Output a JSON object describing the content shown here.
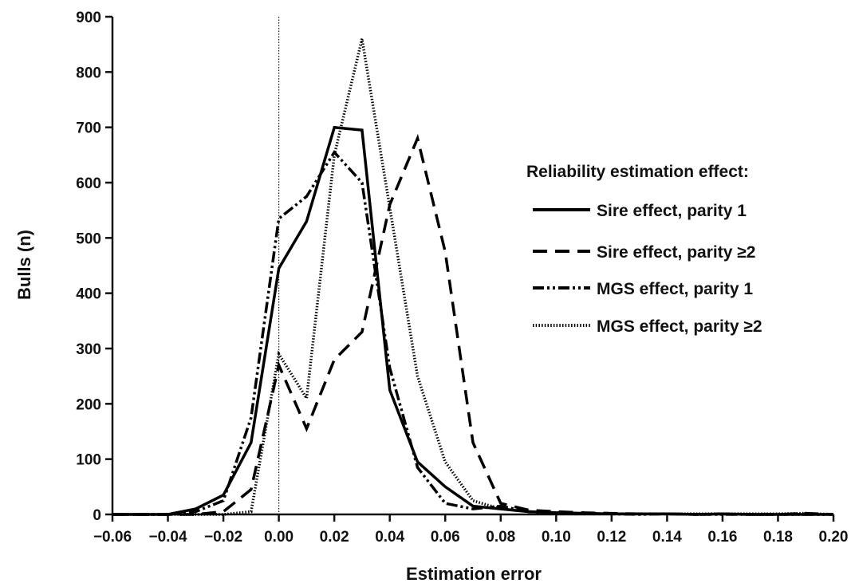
{
  "chart_data": {
    "type": "line",
    "title": "",
    "xlabel": "Estimation error",
    "ylabel": "Bulls (n)",
    "xlim": [
      -0.06,
      0.2
    ],
    "ylim": [
      0,
      900
    ],
    "x_ticks": [
      "−0.06",
      "−0.04",
      "−0.02",
      "0.00",
      "0.02",
      "0.04",
      "0.06",
      "0.08",
      "0.10",
      "0.12",
      "0.14",
      "0.16",
      "0.18",
      "0.20"
    ],
    "y_ticks": [
      "0",
      "100",
      "200",
      "300",
      "400",
      "500",
      "600",
      "700",
      "800",
      "900"
    ],
    "reference_line_x": 0.0,
    "grid": false,
    "legend_title": "Reliability estimation effect:",
    "legend_position": "right",
    "x": [
      -0.06,
      -0.05,
      -0.04,
      -0.03,
      -0.02,
      -0.01,
      0.0,
      0.01,
      0.02,
      0.03,
      0.04,
      0.05,
      0.06,
      0.07,
      0.08,
      0.09,
      0.1,
      0.11,
      0.12,
      0.13,
      0.14,
      0.15,
      0.16,
      0.17,
      0.18,
      0.19,
      0.2
    ],
    "series": [
      {
        "name": "Sire effect, parity 1",
        "style": "solid",
        "values": [
          0,
          0,
          0,
          10,
          35,
          130,
          445,
          530,
          700,
          695,
          225,
          95,
          50,
          15,
          10,
          5,
          3,
          2,
          1,
          1,
          1,
          0,
          1,
          0,
          0,
          0,
          0
        ]
      },
      {
        "name": "Sire effect, parity ≥2",
        "style": "dashed",
        "values": [
          0,
          0,
          0,
          0,
          5,
          45,
          270,
          155,
          280,
          330,
          560,
          680,
          475,
          130,
          20,
          8,
          5,
          3,
          2,
          1,
          1,
          0,
          1,
          0,
          0,
          2,
          0
        ]
      },
      {
        "name": "MGS effect, parity 1",
        "style": "dashdotdot",
        "values": [
          0,
          0,
          0,
          5,
          25,
          175,
          535,
          575,
          655,
          600,
          265,
          85,
          20,
          10,
          15,
          5,
          2,
          1,
          1,
          0,
          1,
          0,
          0,
          0,
          0,
          0,
          0
        ]
      },
      {
        "name": "MGS effect, parity ≥2",
        "style": "dotted",
        "values": [
          0,
          0,
          0,
          0,
          0,
          5,
          290,
          210,
          650,
          860,
          555,
          250,
          95,
          25,
          10,
          5,
          3,
          2,
          1,
          1,
          1,
          1,
          1,
          1,
          1,
          2,
          0
        ]
      }
    ]
  }
}
